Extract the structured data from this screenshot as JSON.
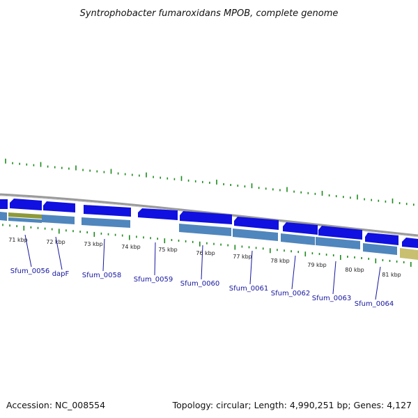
{
  "title": "Syntrophobacter fumaroxidans MPOB, complete genome",
  "footer": {
    "accession": "Accession: NC_008554",
    "summary": "Topology: circular; Length: 4,990,251 bp; Genes: 4,127"
  },
  "colors": {
    "backbone": "#8c8c8c",
    "tick": "#1a8a1a",
    "gene_forward": "#1010e0",
    "gene_reverse": "#4f86bd",
    "gene_other": "#8e9a3a",
    "label": "#1515a0"
  },
  "ruler": {
    "tick_labels": [
      "71 kbp",
      "72 kbp",
      "73 kbp",
      "74 kbp",
      "75 kbp",
      "76 kbp",
      "77 kbp",
      "78 kbp",
      "79 kbp",
      "80 kbp",
      "81 kbp"
    ]
  },
  "gene_labels": [
    "Sfum_0056",
    "dapF",
    "Sfum_0058",
    "Sfum_0059",
    "Sfum_0060",
    "Sfum_0061",
    "Sfum_0062",
    "Sfum_0063",
    "Sfum_0064"
  ]
}
